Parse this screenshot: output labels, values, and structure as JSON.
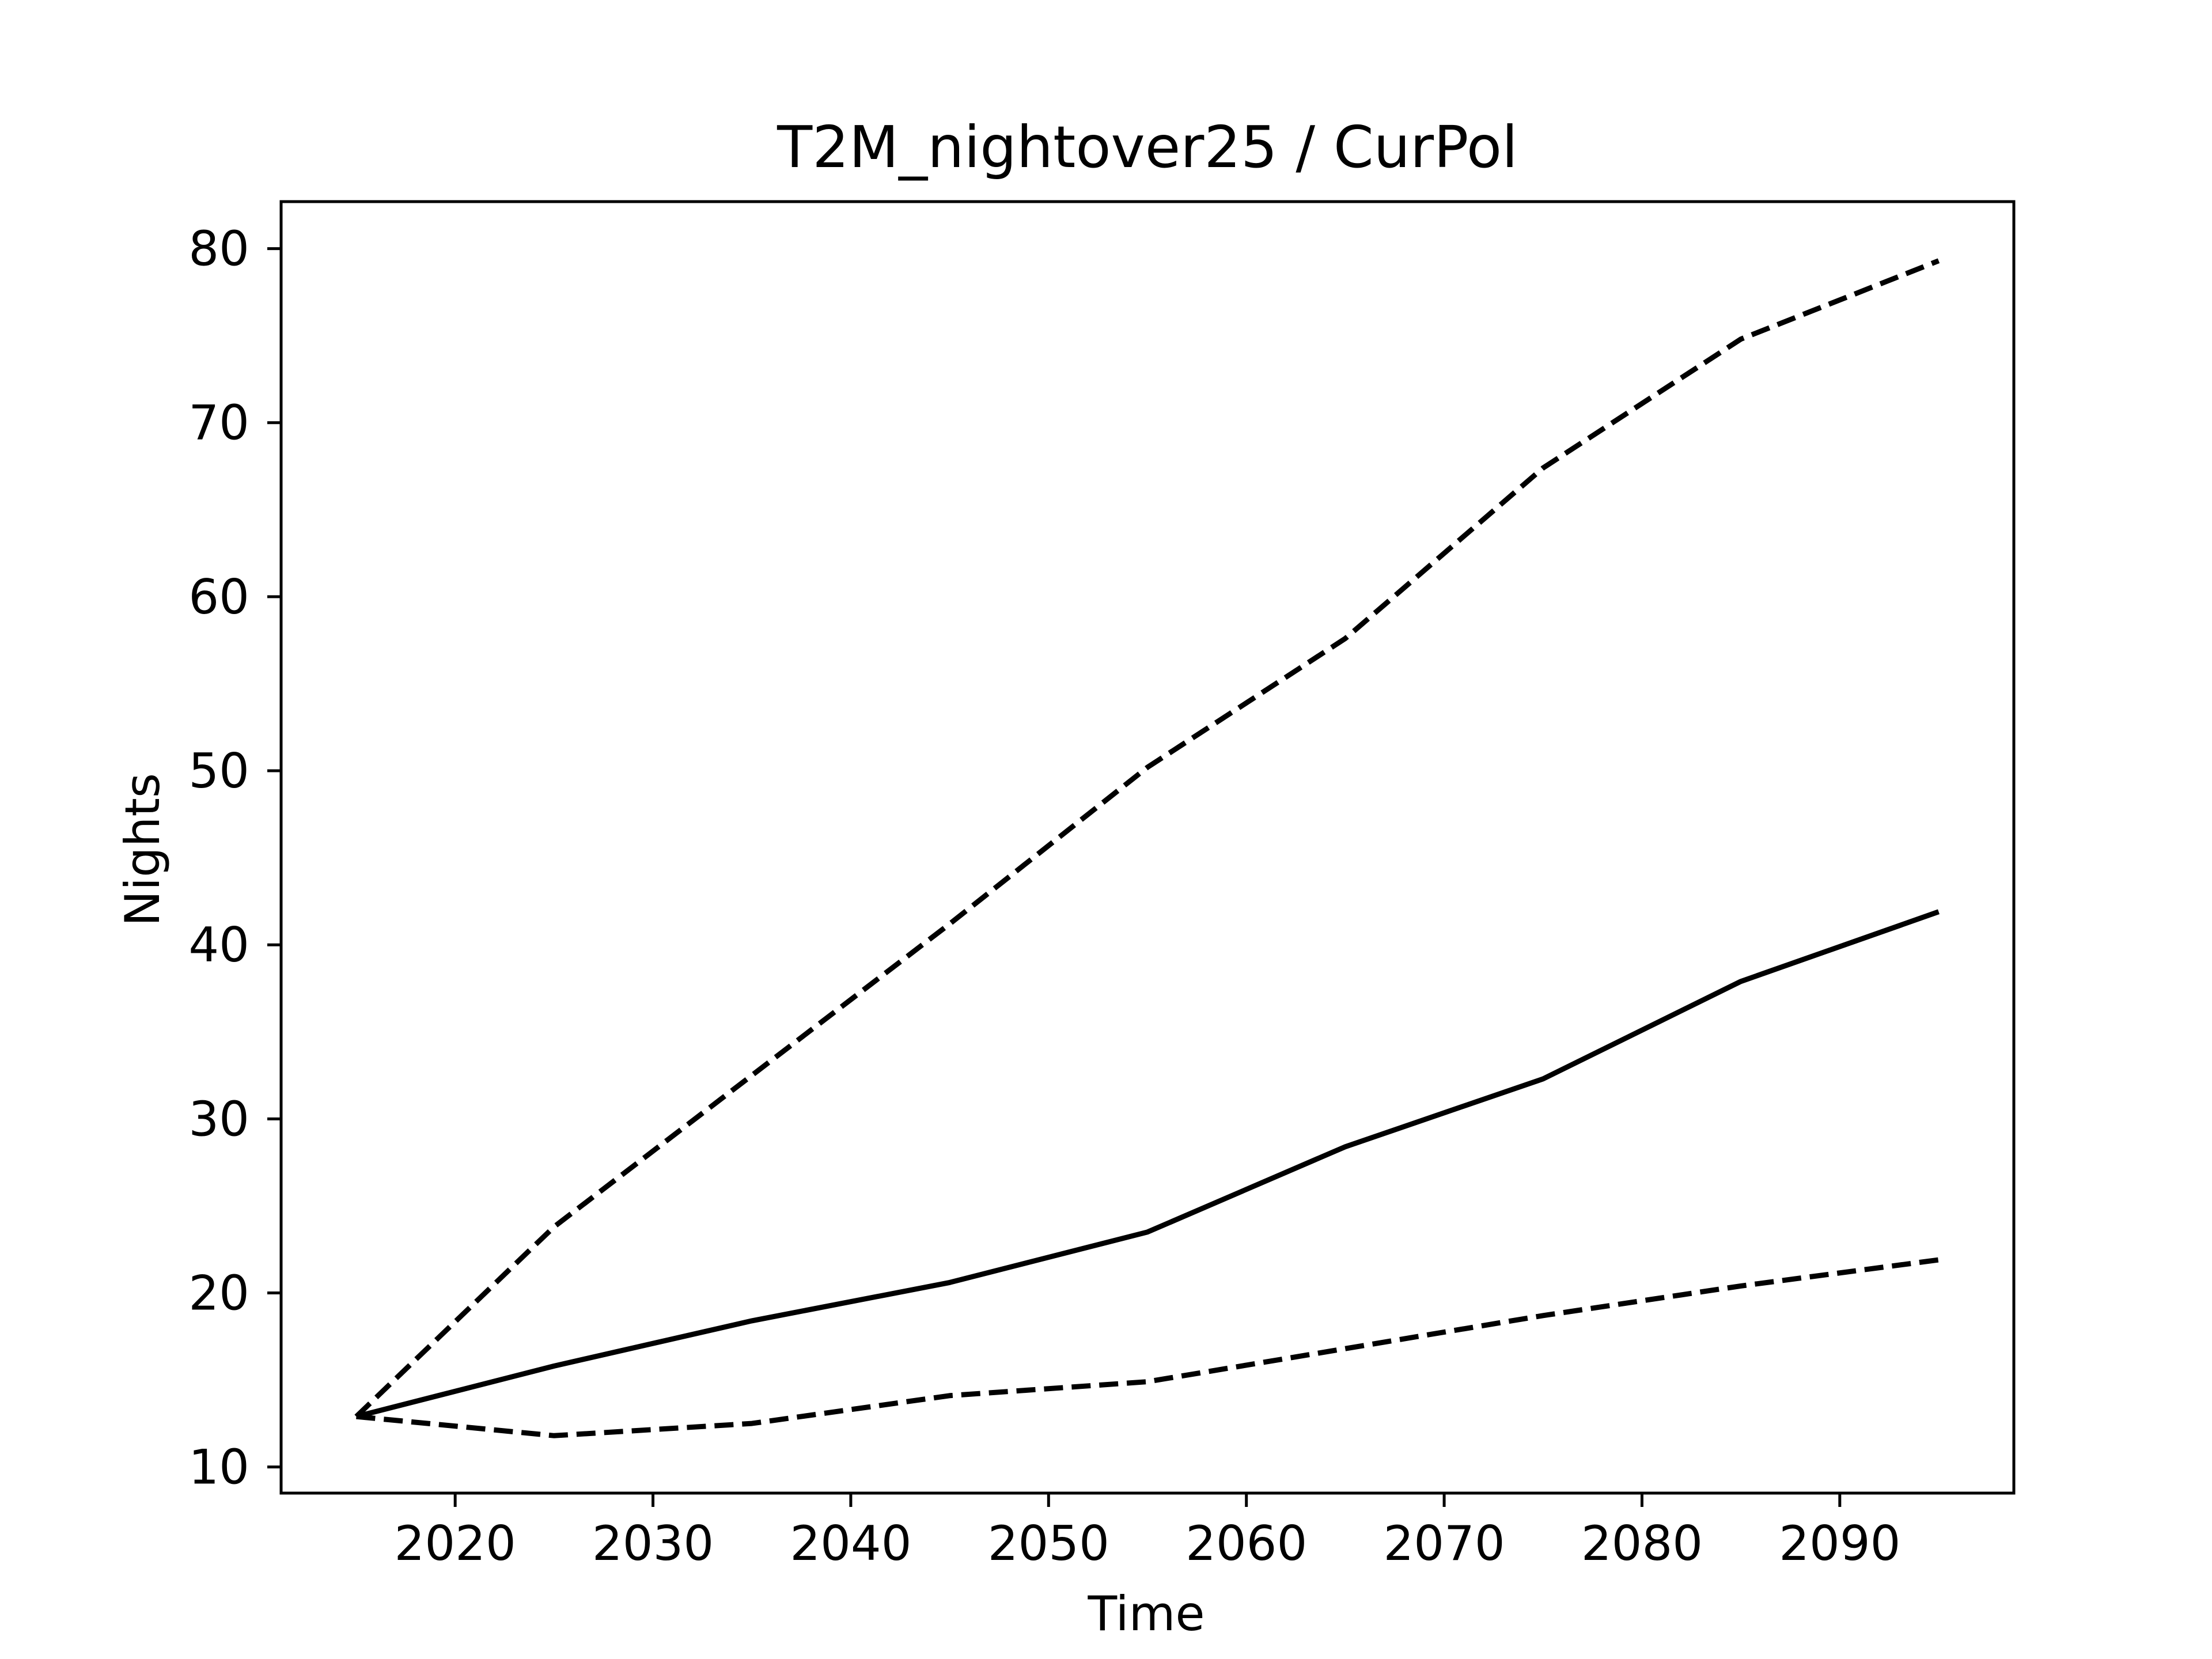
{
  "chart_data": {
    "type": "line",
    "title": "T2M_nightover25 / CurPol",
    "xlabel": "Time",
    "ylabel": "Nights",
    "xlim": [
      2011.2,
      2098.8
    ],
    "ylim": [
      8.5,
      82.7
    ],
    "x_ticks": [
      2020,
      2030,
      2040,
      2050,
      2060,
      2070,
      2080,
      2090
    ],
    "y_ticks": [
      10,
      20,
      30,
      40,
      50,
      60,
      70,
      80
    ],
    "grid": false,
    "legend": "none",
    "x": [
      2015,
      2025,
      2035,
      2045,
      2055,
      2065,
      2075,
      2085,
      2095
    ],
    "series": [
      {
        "style": "dashed",
        "color": "#000000",
        "values": [
          12.9,
          23.8,
          32.5,
          41.2,
          50.2,
          57.6,
          67.4,
          74.8,
          79.3
        ]
      },
      {
        "style": "solid",
        "color": "#000000",
        "values": [
          12.9,
          15.8,
          18.4,
          20.6,
          23.5,
          28.4,
          32.3,
          37.9,
          41.9
        ]
      },
      {
        "style": "dashed",
        "color": "#000000",
        "values": [
          12.9,
          11.8,
          12.5,
          14.1,
          14.9,
          16.8,
          18.7,
          20.4,
          21.9
        ]
      }
    ]
  }
}
